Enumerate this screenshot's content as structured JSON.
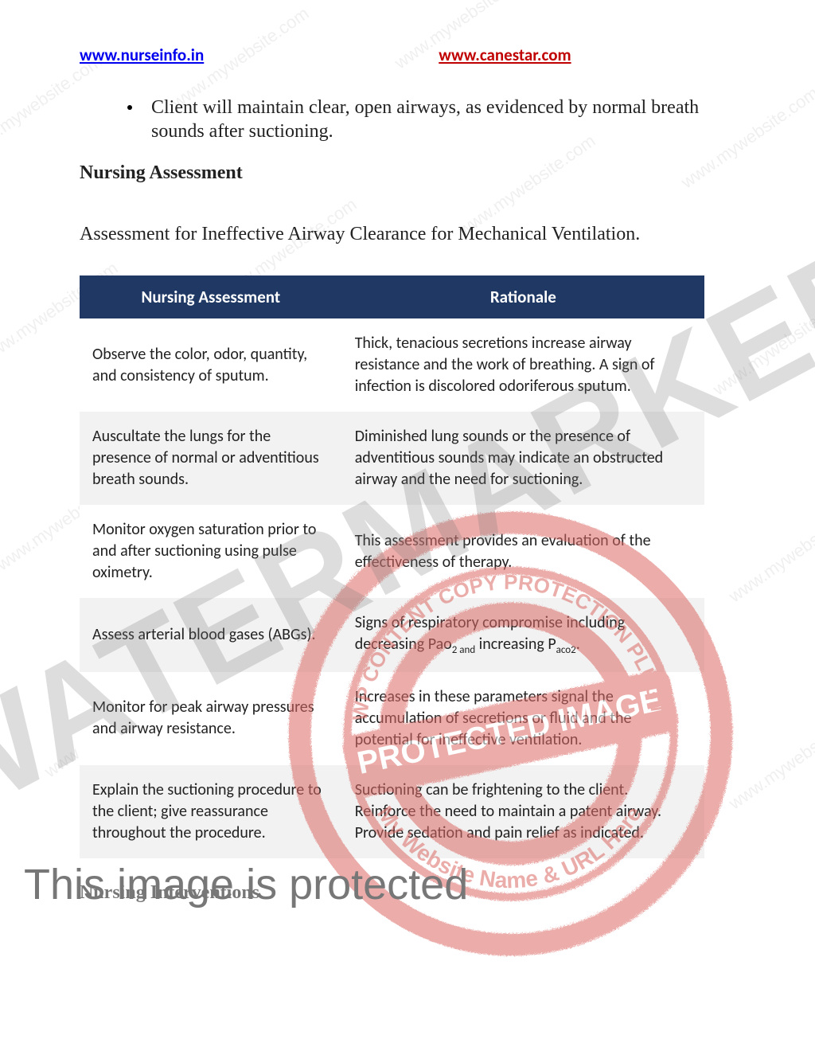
{
  "header": {
    "link_left": "www.nurseinfo.in",
    "link_right": "www.canestar.com"
  },
  "bullet": "Client will maintain clear, open airways, as evidenced by normal breath sounds after suctioning.",
  "heading": "Nursing Assessment",
  "intro": "Assessment for Ineffective Airway Clearance for Mechanical Ventilation.",
  "table": {
    "col_a_header": "Nursing Assessment",
    "col_b_header": "Rationale",
    "rows": [
      {
        "a": "Observe the color, odor, quantity, and consistency of sputum.",
        "b": "Thick, tenacious secretions increase airway resistance and the work of breathing. A sign of infection is discolored odoriferous sputum."
      },
      {
        "a": "Auscultate the lungs for the presence of normal or adventitious breath sounds.",
        "b": "Diminished lung sounds or the presence of adventitious sounds may indicate an obstructed airway and the need for suctioning."
      },
      {
        "a": "Monitor oxygen saturation prior to and after suctioning using pulse oximetry.",
        "b": "This assessment provides an evaluation of the effectiveness of therapy."
      },
      {
        "a": "Assess arterial blood gases (ABGs).",
        "b_html": "Signs of respiratory compromise including decreasing Pao<span class=\"subscript\">2 and</span> increasing P<span class=\"subscript\">aco2</span>."
      },
      {
        "a": "Monitor for peak airway pressures and airway resistance.",
        "b": "Increases in these parameters signal the accumulation of secretions or fluid and the potential for ineffective ventilation."
      },
      {
        "a": "Explain the suctioning procedure to the client; give reassurance throughout the procedure.",
        "b": "Suctioning can be frightening to the client. Reinforce the need to maintain a patent airway. Provide sedation and pain relief as indicated."
      }
    ]
  },
  "footer_heading": "Nursing Interventions",
  "watermark": {
    "big_text": "WATERMARKED",
    "site_text": "www.mywebsite.com",
    "banner": "This image is protected",
    "stamp_inner": "PROTECTED IMAGE",
    "stamp_outer_top": "WP CONTENT COPY PROTECTION PLUGIN",
    "stamp_outer_bottom": "My Website Name & URL Here",
    "stamp_color": "#d9534f"
  },
  "colors": {
    "link_left": "#0000ee",
    "link_right": "#c00000",
    "table_header_bg": "#1f3864",
    "table_header_fg": "#ffffff",
    "row_even_bg": "#f2f2f2",
    "row_odd_bg": "#ffffff",
    "watermark_text": "rgba(120,120,120,0.25)",
    "stamp": "#dc6b66"
  }
}
